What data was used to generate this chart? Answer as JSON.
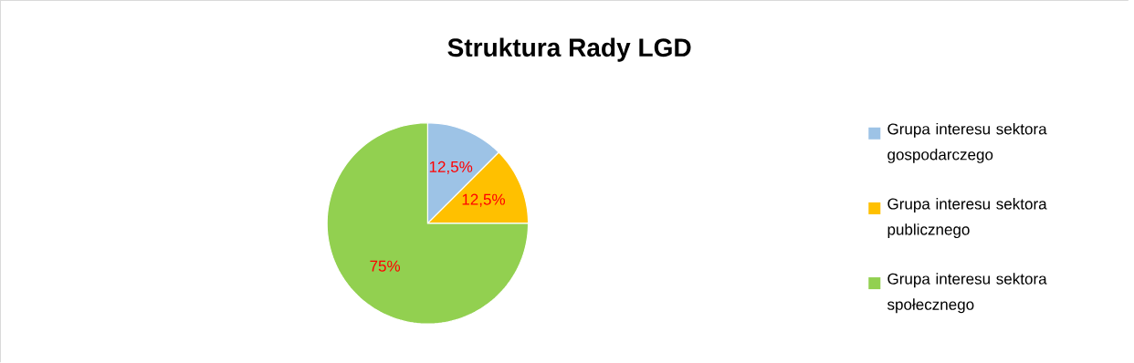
{
  "chart_data": {
    "type": "pie",
    "title": "Struktura Rady LGD",
    "categories": [
      "Grupa interesu sektora gospodarczego",
      "Grupa interesu sektora publicznego",
      "Grupa interesu sektora społecznego"
    ],
    "values": [
      12.5,
      12.5,
      75
    ],
    "colors": [
      "#9dc3e6",
      "#ffc000",
      "#92d050"
    ],
    "value_labels": [
      "12,5%",
      "12,5%",
      "75%"
    ],
    "legend": "right"
  }
}
